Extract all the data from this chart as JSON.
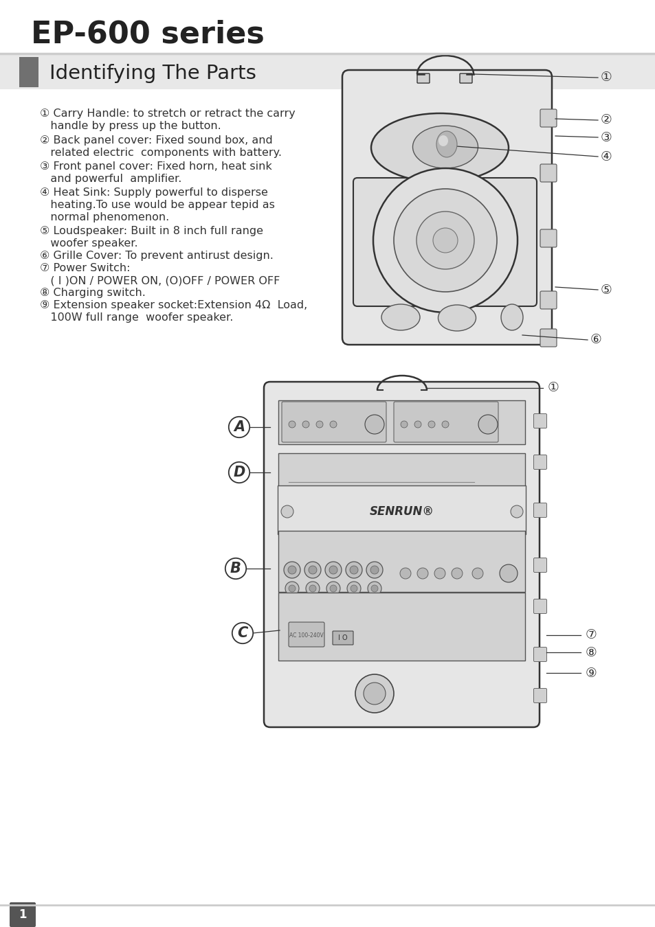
{
  "title": "EP-600 series",
  "section": "Identifying The Parts",
  "bg_color": "#ffffff",
  "title_color": "#222222",
  "section_text_color": "#222222",
  "footer_num": "1",
  "line_color": "#cccccc",
  "list_lines": [
    [
      158,
      "① Carry Handle: to stretch or retract the carry"
    ],
    [
      176,
      "   handle by press up the button."
    ],
    [
      197,
      "② Back panel cover: Fixed sound box, and"
    ],
    [
      215,
      "   related electric  components with battery."
    ],
    [
      235,
      "③ Front panel cover: Fixed horn, heat sink"
    ],
    [
      253,
      "   and powerful  amplifier."
    ],
    [
      273,
      "④ Heat Sink: Supply powerful to disperse"
    ],
    [
      291,
      "   heating.To use would be appear tepid as"
    ],
    [
      309,
      "   normal phenomenon."
    ],
    [
      329,
      "⑤ Loudspeaker: Built in 8 inch full range"
    ],
    [
      347,
      "   woofer speaker."
    ],
    [
      365,
      "⑥ Grille Cover: To prevent antirust design."
    ],
    [
      383,
      "⑦ Power Switch:"
    ],
    [
      401,
      "   ( I )ON / POWER ON, (O)OFF / POWER OFF"
    ],
    [
      419,
      "⑧ Charging switch."
    ],
    [
      437,
      "⑨ Extension speaker socket:Extension 4Ω  Load,"
    ],
    [
      455,
      "   100W full range  woofer speaker."
    ]
  ]
}
